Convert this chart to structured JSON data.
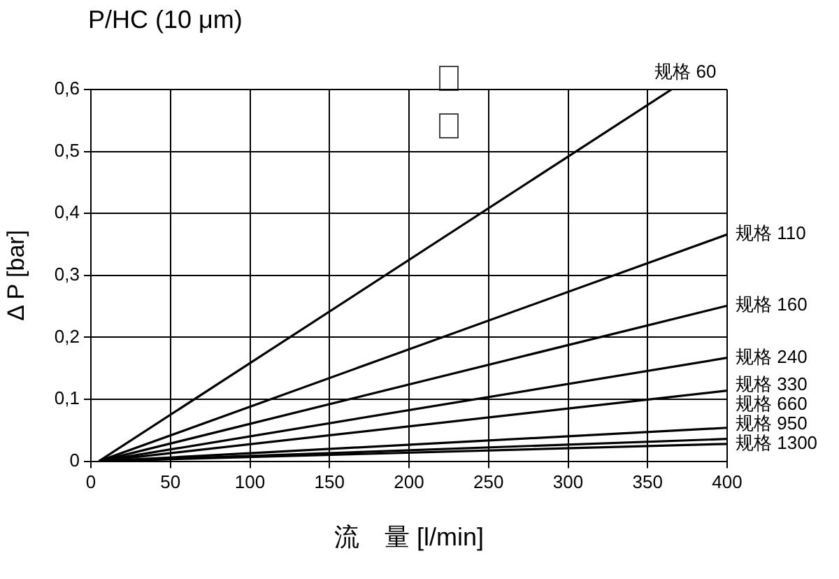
{
  "chart_data": {
    "type": "line",
    "title": "P/HC (10 μm)",
    "xlabel": "流　量 [l/min]",
    "ylabel": "Δ P [bar]",
    "xlim": [
      0,
      400
    ],
    "xticks": [
      0,
      50,
      100,
      150,
      200,
      250,
      300,
      350,
      400
    ],
    "ylim": [
      0,
      0.6
    ],
    "yticks": [
      0,
      {
        "value": 0.1,
        "label": "0,1"
      },
      {
        "value": 0.2,
        "label": "0,2"
      },
      {
        "value": 0.3,
        "label": "0,3"
      },
      {
        "value": 0.4,
        "label": "0,4"
      },
      {
        "value": 0.5,
        "label": "0,5"
      },
      {
        "value": 0.6,
        "label": "0,6"
      }
    ],
    "grid": true,
    "legend": false,
    "marker": "none",
    "line_style": "solid",
    "series": [
      {
        "name": "规格 60",
        "color": "#000000",
        "x": [
          5,
          365
        ],
        "values": [
          0,
          0.6
        ]
      },
      {
        "name": "规格 110",
        "color": "#000000",
        "x": [
          5,
          400
        ],
        "values": [
          0,
          0.366
        ]
      },
      {
        "name": "规格 160",
        "color": "#000000",
        "x": [
          5,
          400
        ],
        "values": [
          0,
          0.251
        ]
      },
      {
        "name": "规格 240",
        "color": "#000000",
        "x": [
          5,
          400
        ],
        "values": [
          0,
          0.167
        ]
      },
      {
        "name": "规格 330",
        "color": "#000000",
        "x": [
          5,
          400
        ],
        "values": [
          0,
          0.114
        ]
      },
      {
        "name": "规格 660",
        "color": "#000000",
        "x": [
          5,
          400
        ],
        "values": [
          0,
          0.054
        ]
      },
      {
        "name": "规格 950",
        "color": "#000000",
        "x": [
          5,
          400
        ],
        "values": [
          0,
          0.036
        ]
      },
      {
        "name": "规格 1300",
        "color": "#000000",
        "x": [
          5,
          400
        ],
        "values": [
          0,
          0.028
        ]
      }
    ]
  }
}
